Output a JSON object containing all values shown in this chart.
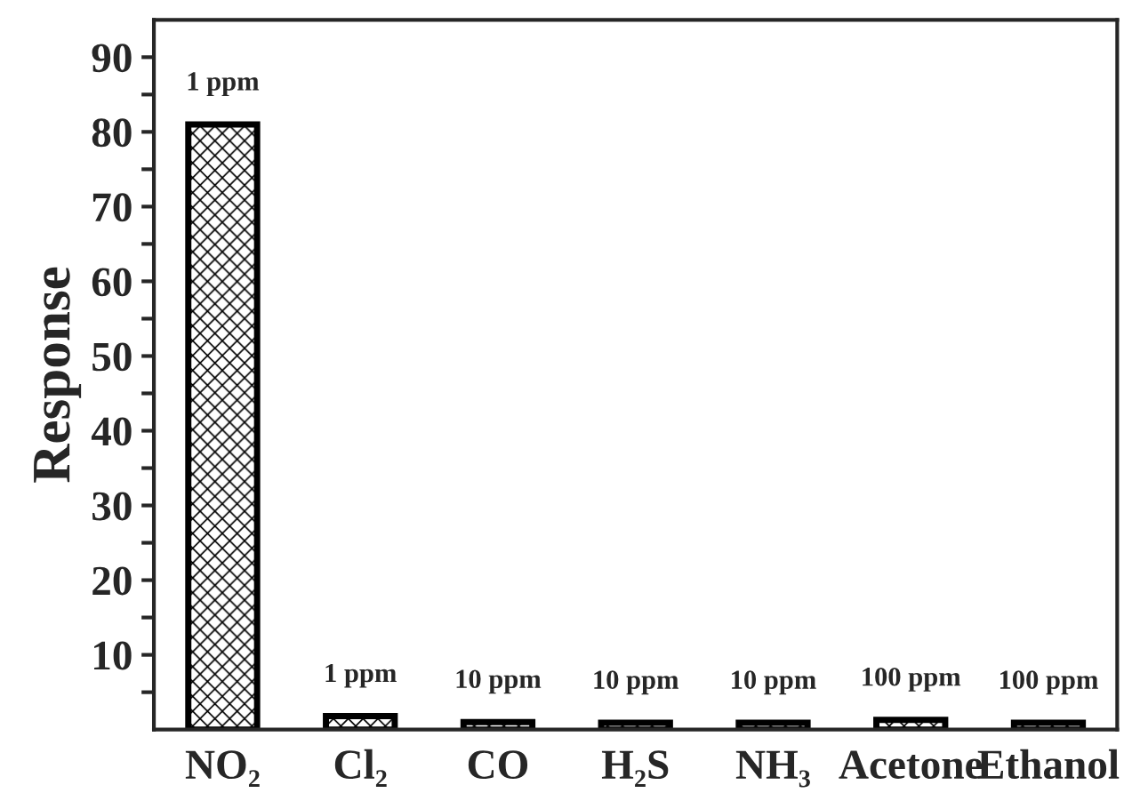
{
  "chart_data": {
    "type": "bar",
    "ylabel": "Response",
    "categories": [
      "NO₂",
      "Cl₂",
      "CO",
      "H₂S",
      "NH₃",
      "Acetone",
      "Ethanol"
    ],
    "values": [
      81,
      1.8,
      1.0,
      0.9,
      0.9,
      1.3,
      0.9
    ],
    "color": "#000000",
    "ylim": [
      0,
      95
    ],
    "yticks": [
      {
        "value": 5,
        "label": null
      },
      10,
      {
        "value": 15,
        "label": null
      },
      20,
      {
        "value": 25,
        "label": null
      },
      30,
      {
        "value": 35,
        "label": null
      },
      40,
      {
        "value": 45,
        "label": null
      },
      50,
      {
        "value": 55,
        "label": null
      },
      60,
      {
        "value": 65,
        "label": null
      },
      70,
      {
        "value": 75,
        "label": null
      },
      80,
      {
        "value": 85,
        "label": null
      },
      90
    ],
    "annotations": [
      {
        "text": "1 ppm",
        "x": "NO₂",
        "y": 81
      },
      {
        "text": "1 ppm",
        "x": "Cl₂",
        "y": 1.8
      },
      {
        "text": "10 ppm",
        "x": "CO",
        "y": 1.0
      },
      {
        "text": "10 ppm",
        "x": "H₂S",
        "y": 0.9
      },
      {
        "text": "10 ppm",
        "x": "NH₃",
        "y": 0.9
      },
      {
        "text": "100 ppm",
        "x": "Acetone",
        "y": 1.3
      },
      {
        "text": "100 ppm",
        "x": "Ethanol",
        "y": 0.9
      }
    ]
  }
}
